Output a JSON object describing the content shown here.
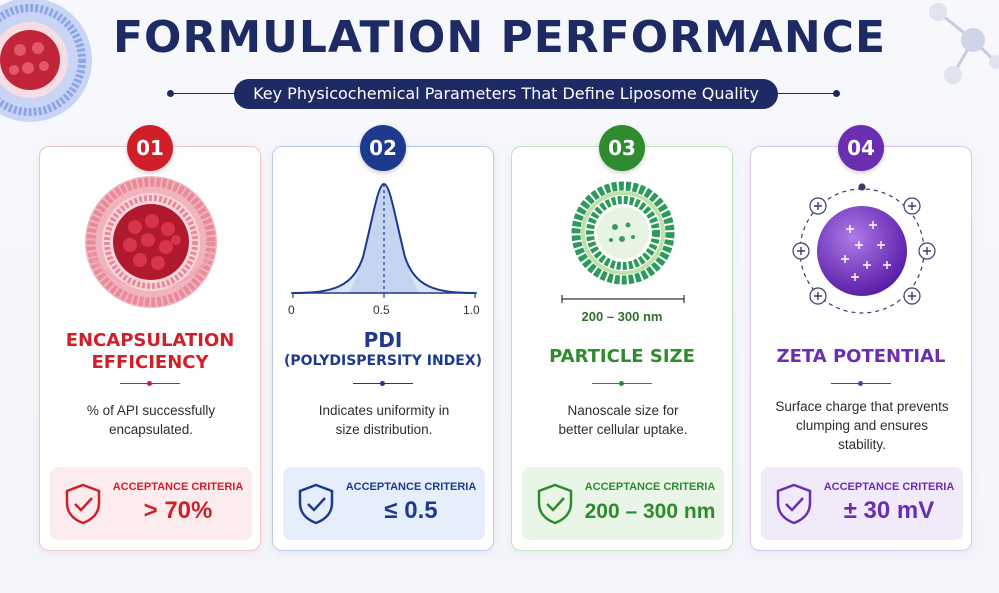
{
  "header": {
    "title": "FORMULATION PERFORMANCE",
    "subtitle": "Key Physicochemical Parameters That Define Liposome Quality"
  },
  "cards": [
    {
      "number": "01",
      "title_line1": "ENCAPSULATION",
      "title_line2": "EFFICIENCY",
      "desc_line1": "% of API successfully",
      "desc_line2": "encapsulated.",
      "criteria_label": "ACCEPTANCE CRITERIA",
      "criteria_value": "> 70%",
      "accent": "#d11f2a",
      "icon": "liposome-cross-section-icon"
    },
    {
      "number": "02",
      "title_line1": "PDI",
      "title_line2": "(POLYDISPERSITY INDEX)",
      "desc_line1": "Indicates uniformity in",
      "desc_line2": "size distribution.",
      "criteria_label": "ACCEPTANCE CRITERIA",
      "criteria_value": "≤ 0.5",
      "accent": "#1d3a8f",
      "icon": "bell-curve-icon",
      "axis_ticks": [
        "0",
        "0.5",
        "1.0"
      ]
    },
    {
      "number": "03",
      "title_line1": "PARTICLE SIZE",
      "desc_line1": "Nanoscale size for",
      "desc_line2": "better cellular uptake.",
      "criteria_label": "ACCEPTANCE CRITERIA",
      "criteria_value": "200 – 300 nm",
      "size_label": "200 – 300 nm",
      "accent": "#2e8b2e",
      "icon": "liposome-ring-icon"
    },
    {
      "number": "04",
      "title_line1": "ZETA POTENTIAL",
      "desc_line1": "Surface charge that prevents",
      "desc_line2": "clumping and ensures",
      "desc_line3": "stability.",
      "criteria_label": "ACCEPTANCE CRITERIA",
      "criteria_value": "± 30 mV",
      "accent": "#6a2fb0",
      "icon": "charged-sphere-icon"
    }
  ]
}
